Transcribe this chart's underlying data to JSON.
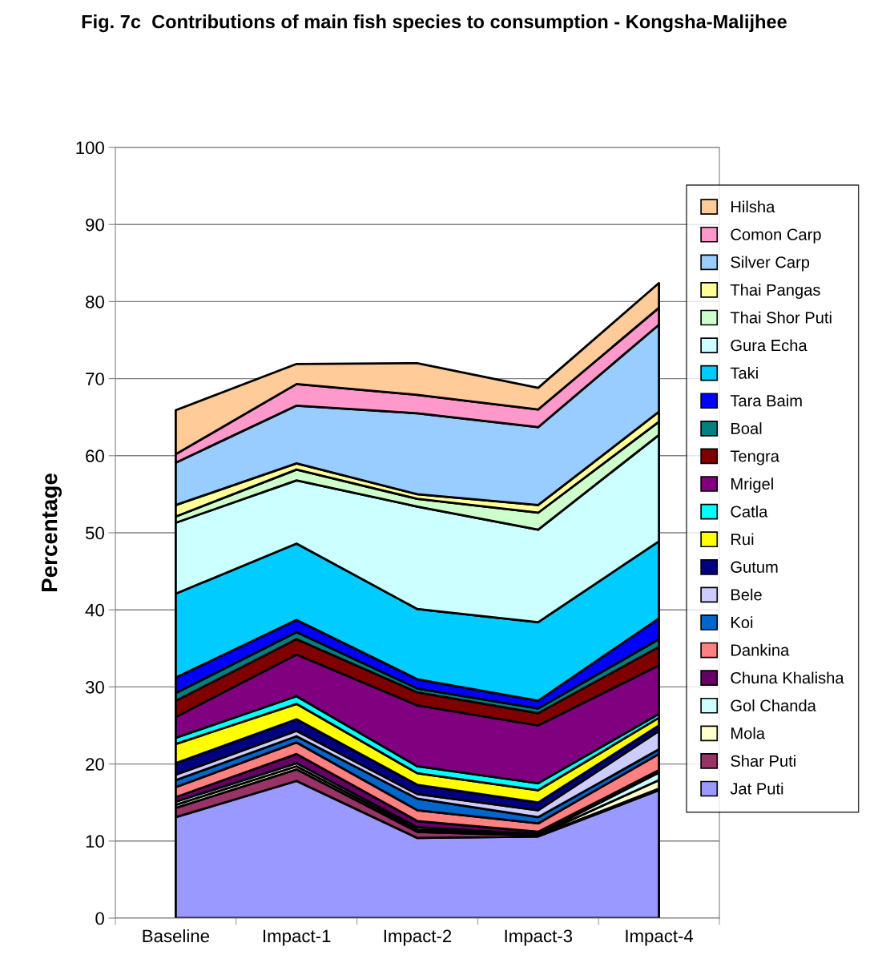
{
  "chart_data": {
    "type": "area",
    "stacked": true,
    "title": "Fig. 7c  Contributions of main fish species to consumption - Kongsha-Malijhee",
    "ylabel": "Percentage",
    "categories": [
      "Baseline",
      "Impact-1",
      "Impact-2",
      "Impact-3",
      "Impact-4"
    ],
    "ylim": [
      0,
      100
    ],
    "yticks": [
      0,
      10,
      20,
      30,
      40,
      50,
      60,
      70,
      80,
      90,
      100
    ],
    "grid": "y",
    "legend": "right",
    "series": [
      {
        "name": "Jat Puti",
        "color": "#9999ff",
        "values": [
          13.1,
          17.8,
          10.4,
          10.6,
          16.6
        ]
      },
      {
        "name": "Shar Puti",
        "color": "#993366",
        "values": [
          1.2,
          1.5,
          0.8,
          0.1,
          0.2
        ]
      },
      {
        "name": "Mola",
        "color": "#ffffcc",
        "values": [
          0.4,
          0.4,
          0.3,
          0.1,
          1.1
        ]
      },
      {
        "name": "Gol Chanda",
        "color": "#ccffff",
        "values": [
          0.4,
          0.4,
          0.3,
          0.1,
          1.0
        ]
      },
      {
        "name": "Chuna Khalisha",
        "color": "#660066",
        "values": [
          0.6,
          1.2,
          0.8,
          0.3,
          0.3
        ]
      },
      {
        "name": "Dankina",
        "color": "#ff8080",
        "values": [
          1.3,
          1.5,
          1.4,
          1.1,
          2.1
        ]
      },
      {
        "name": "Koi",
        "color": "#0066cc",
        "values": [
          0.9,
          0.8,
          1.5,
          0.8,
          0.6
        ]
      },
      {
        "name": "Bele",
        "color": "#ccccff",
        "values": [
          0.7,
          0.7,
          0.6,
          0.9,
          2.4
        ]
      },
      {
        "name": "Gutum",
        "color": "#000080",
        "values": [
          1.5,
          1.5,
          1.2,
          1.0,
          0.7
        ]
      },
      {
        "name": "Rui",
        "color": "#ffff00",
        "values": [
          2.5,
          2.0,
          1.5,
          1.6,
          1.0
        ]
      },
      {
        "name": "Catla",
        "color": "#00ffff",
        "values": [
          0.8,
          1.0,
          0.9,
          0.9,
          0.5
        ]
      },
      {
        "name": "Mrigel",
        "color": "#800080",
        "values": [
          2.7,
          5.4,
          7.9,
          7.5,
          6.3
        ]
      },
      {
        "name": "Tengra",
        "color": "#800000",
        "values": [
          2.1,
          2.0,
          1.7,
          1.6,
          2.4
        ]
      },
      {
        "name": "Boal",
        "color": "#008080",
        "values": [
          1.0,
          0.9,
          0.5,
          0.6,
          1.0
        ]
      },
      {
        "name": "Tara Baim",
        "color": "#0000ff",
        "values": [
          2.0,
          1.6,
          1.2,
          1.0,
          2.7
        ]
      },
      {
        "name": "Taki",
        "color": "#00ccff",
        "values": [
          10.9,
          9.9,
          9.1,
          10.2,
          10.0
        ]
      },
      {
        "name": "Gura Echa",
        "color": "#ccffff",
        "values": [
          9.2,
          8.2,
          13.3,
          12.0,
          13.8
        ]
      },
      {
        "name": "Thai Shor Puti",
        "color": "#ccffcc",
        "values": [
          0.8,
          1.4,
          1.0,
          2.2,
          1.7
        ]
      },
      {
        "name": "Thai Pangas",
        "color": "#ffff99",
        "values": [
          1.5,
          0.8,
          0.6,
          1.0,
          1.3
        ]
      },
      {
        "name": "Silver Carp",
        "color": "#99ccff",
        "values": [
          5.5,
          7.5,
          10.5,
          10.1,
          11.3
        ]
      },
      {
        "name": "Comon Carp",
        "color": "#ff99cc",
        "values": [
          1.1,
          2.8,
          2.4,
          2.3,
          2.2
        ]
      },
      {
        "name": "Hilsha",
        "color": "#ffcc99",
        "values": [
          5.7,
          2.6,
          4.1,
          2.8,
          3.2
        ]
      }
    ]
  }
}
